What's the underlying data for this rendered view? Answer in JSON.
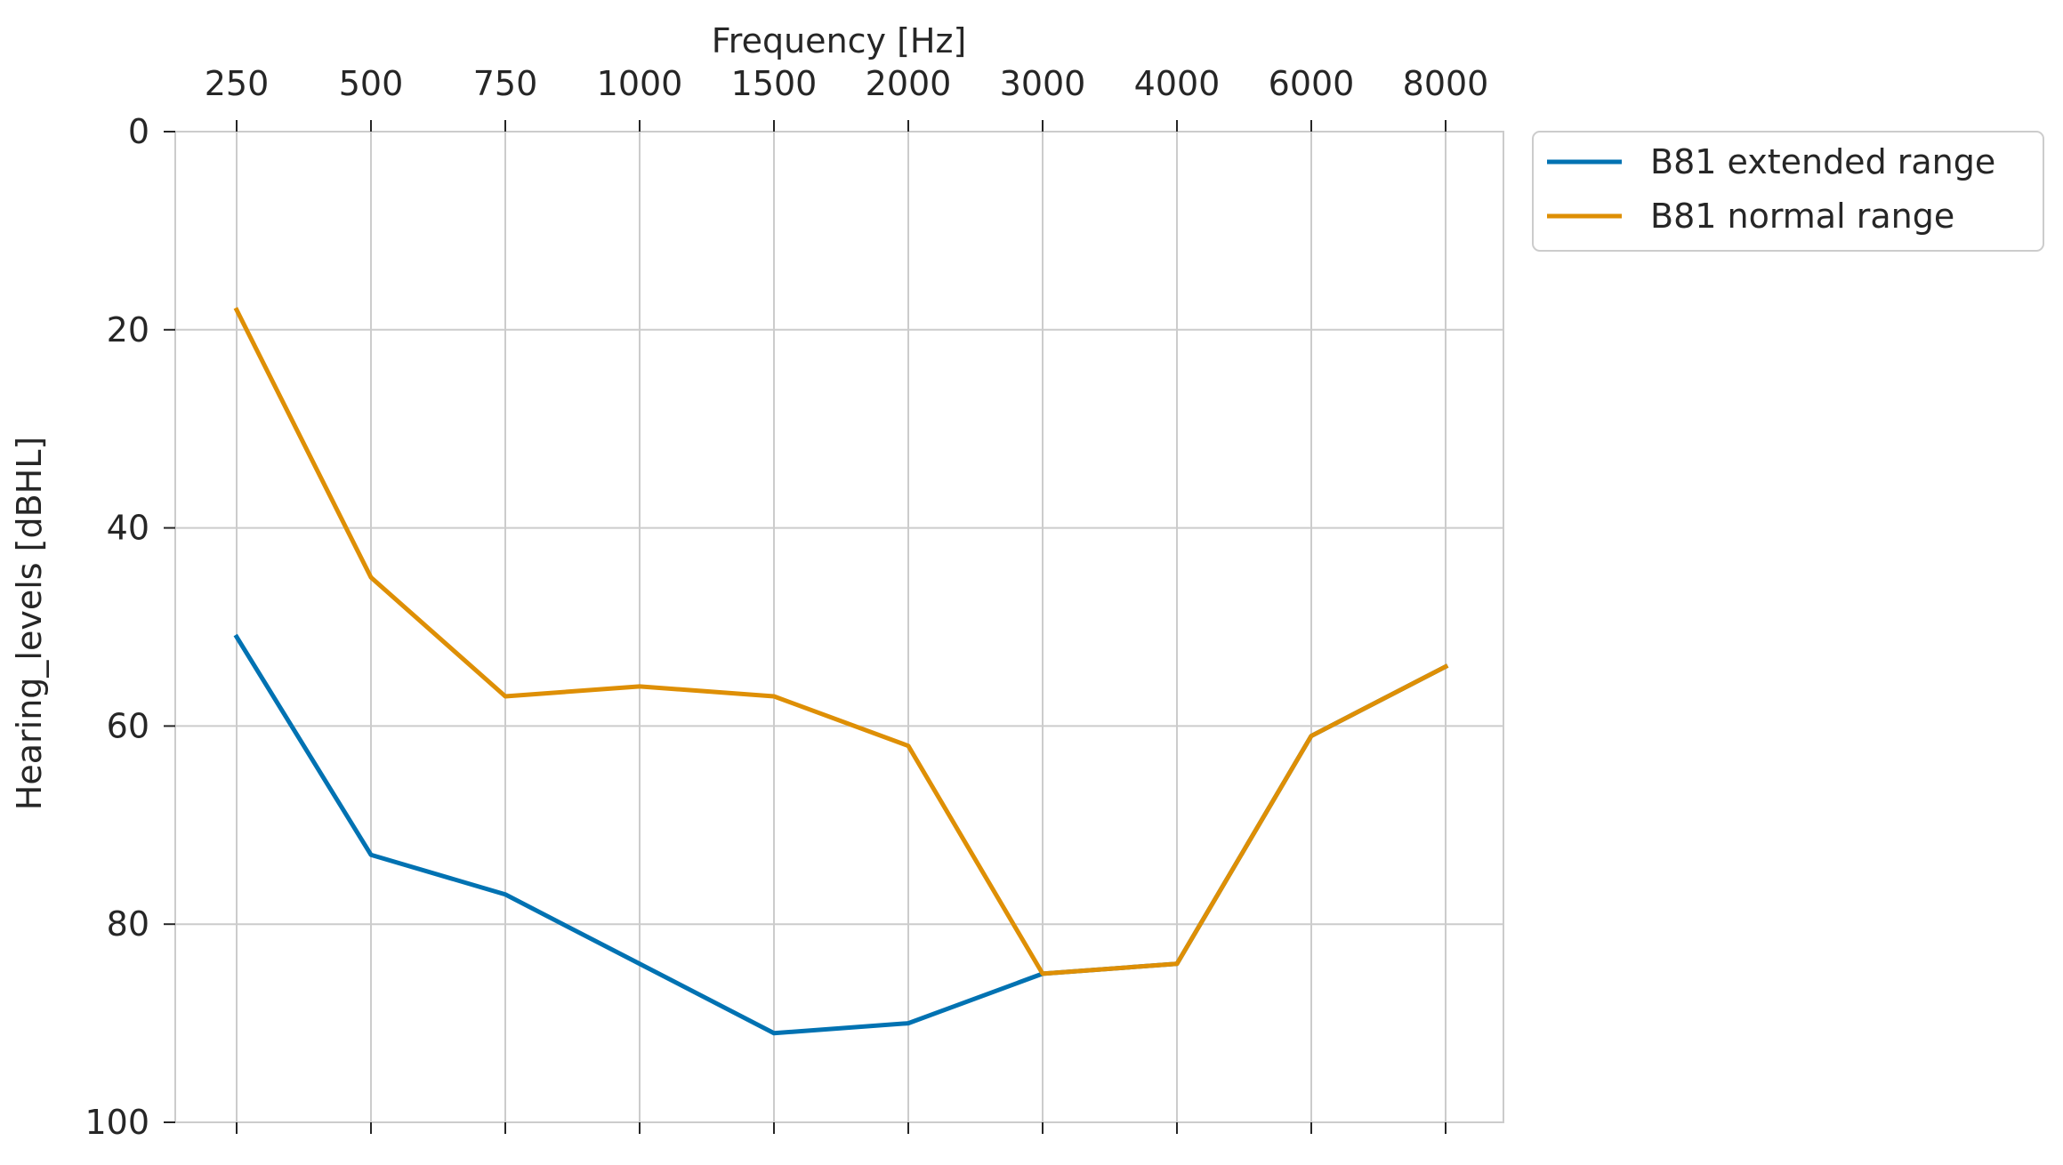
{
  "chart_data": {
    "type": "line",
    "xlabel": "Frequency [Hz]",
    "ylabel": "Hearing_levels [dBHL]",
    "x_tick_labels": [
      "250",
      "500",
      "750",
      "1000",
      "1500",
      "2000",
      "3000",
      "4000",
      "6000",
      "8000"
    ],
    "x_axis_position": "top",
    "y_ticks": [
      0,
      20,
      40,
      60,
      80,
      100
    ],
    "ylim": [
      0,
      100
    ],
    "y_inverted": true,
    "grid": true,
    "legend_placement": "outside-top-right",
    "series": [
      {
        "name": "B81 extended range",
        "color": "#0072b2",
        "values": [
          51,
          73,
          77,
          84,
          91,
          90,
          85,
          84,
          61,
          54
        ]
      },
      {
        "name": "B81 normal range",
        "color": "#de8f05",
        "values": [
          18,
          45,
          57,
          56,
          57,
          62,
          85,
          84,
          61,
          54
        ]
      }
    ]
  }
}
